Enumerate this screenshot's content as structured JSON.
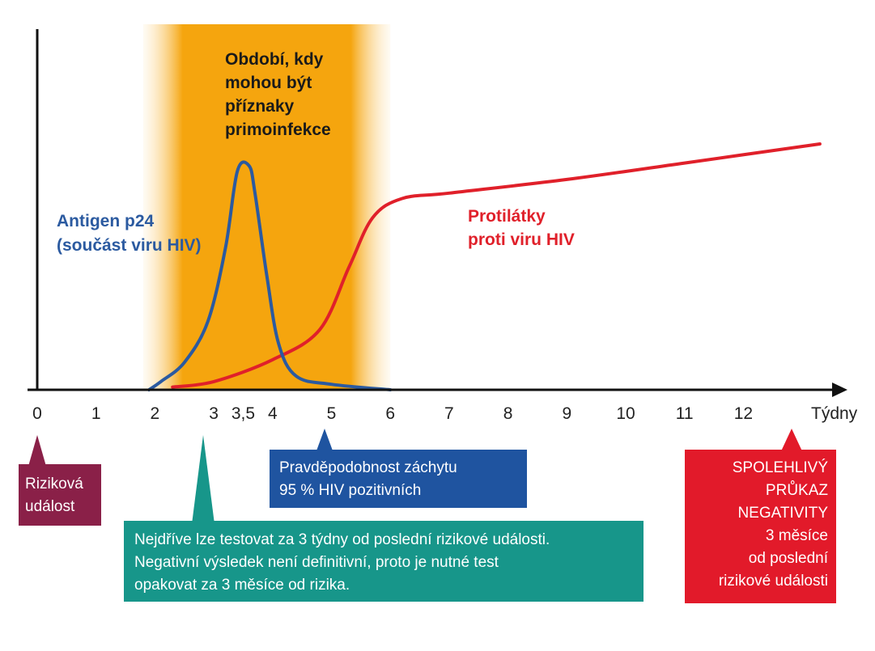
{
  "chart_data": {
    "type": "line",
    "x_unit_label": "Týdny",
    "x_ticks": [
      {
        "x": 0,
        "label": "0"
      },
      {
        "x": 1,
        "label": "1"
      },
      {
        "x": 2,
        "label": "2"
      },
      {
        "x": 3,
        "label": "3"
      },
      {
        "x": 3.5,
        "label": "3,5"
      },
      {
        "x": 4,
        "label": "4"
      },
      {
        "x": 5,
        "label": "5"
      },
      {
        "x": 6,
        "label": "6"
      },
      {
        "x": 7,
        "label": "7"
      },
      {
        "x": 8,
        "label": "8"
      },
      {
        "x": 9,
        "label": "9"
      },
      {
        "x": 10,
        "label": "10"
      },
      {
        "x": 11,
        "label": "11"
      },
      {
        "x": 12,
        "label": "12"
      }
    ],
    "xlim": [
      0,
      13.8
    ],
    "ylim": [
      0,
      1
    ],
    "shaded_period": {
      "x_start": 1.8,
      "x_end": 6.0,
      "label_lines": [
        "Období, kdy",
        "mohou být",
        "příznaky",
        "primoinfekce"
      ]
    },
    "series": [
      {
        "key": "antigen",
        "label_lines": [
          "Antigen p24",
          "(součást viru HIV)"
        ],
        "color": "#2b5aa0",
        "points": [
          [
            1.9,
            0
          ],
          [
            2.1,
            0.03
          ],
          [
            2.5,
            0.1
          ],
          [
            2.9,
            0.25
          ],
          [
            3.2,
            0.52
          ],
          [
            3.4,
            0.8
          ],
          [
            3.6,
            0.82
          ],
          [
            3.7,
            0.72
          ],
          [
            3.9,
            0.42
          ],
          [
            4.1,
            0.17
          ],
          [
            4.4,
            0.05
          ],
          [
            5.0,
            0.02
          ],
          [
            6.0,
            0.0
          ]
        ]
      },
      {
        "key": "antibodies",
        "label_lines": [
          "Protilátky",
          "proti viru HIV"
        ],
        "color": "#e0202a",
        "points": [
          [
            2.3,
            0.01
          ],
          [
            3.0,
            0.03
          ],
          [
            4.0,
            0.11
          ],
          [
            4.8,
            0.22
          ],
          [
            5.3,
            0.45
          ],
          [
            5.7,
            0.63
          ],
          [
            6.2,
            0.7
          ],
          [
            7.0,
            0.72
          ],
          [
            9.0,
            0.77
          ],
          [
            11.0,
            0.83
          ],
          [
            13.3,
            0.9
          ]
        ]
      }
    ]
  },
  "callouts": {
    "risk_event": {
      "lines": [
        "Riziková",
        "událost"
      ],
      "color": "#8a2048",
      "points_to_x": 0
    },
    "first_test": {
      "lines": [
        "Nejdříve lze testovat za 3 týdny od poslední rizikové události.",
        "Negativní výsledek není definitivní, proto je nutné test",
        "opakovat za 3 měsíce od rizika."
      ],
      "color": "#17968a",
      "points_to_x": 3
    },
    "detection": {
      "lines": [
        "Pravděpodobnost záchytu",
        "95 % HIV pozitivních"
      ],
      "color": "#1f54a0",
      "points_to_x": 4
    },
    "negativity": {
      "lines": [
        "SPOLEHLIVÝ",
        "PRŮKAZ",
        "NEGATIVITY",
        "3 měsíce",
        "od poslední",
        "rizikové události"
      ],
      "color": "#e21a2a",
      "points_to_x": 12
    }
  },
  "colors": {
    "axis": "#111111",
    "shade_core": "#f5a50e",
    "shade_fade": "#fde3b2"
  }
}
